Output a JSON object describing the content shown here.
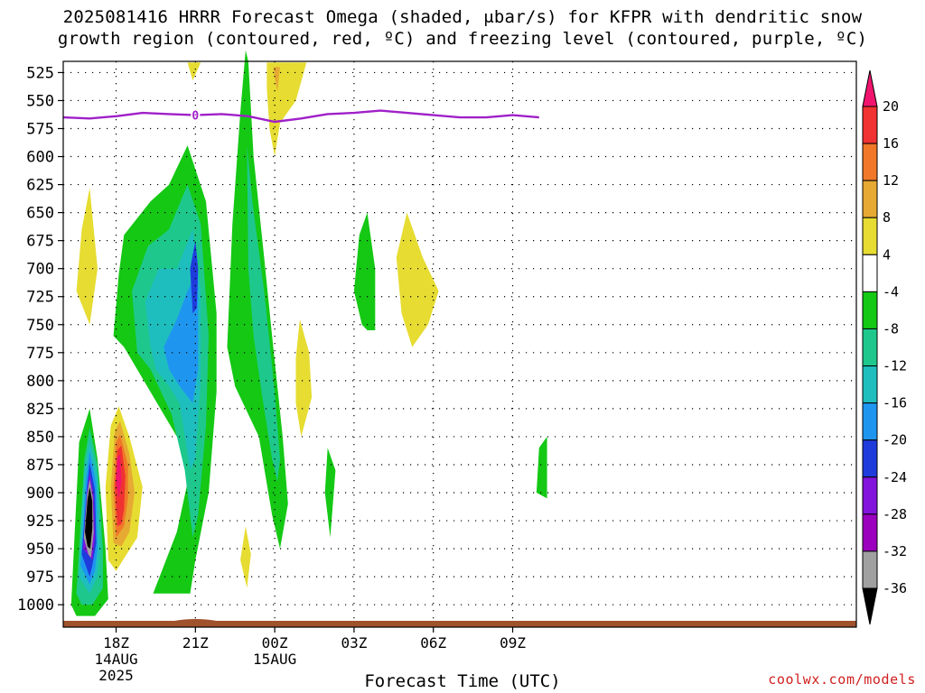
{
  "title_line1": "2025081416 HRRR Forecast Omega (shaded, μbar/s) for KFPR with dendritic snow",
  "title_line2": "growth region (contoured, red, ºC) and freezing level (contoured, purple, ºC)",
  "credit": "coolwx.com/models",
  "chart_data": {
    "type": "heatmap",
    "title": "2025081416 HRRR Forecast Omega (shaded, μbar/s) for KFPR with dendritic snow growth region (contoured, red, ºC) and freezing level (contoured, purple, ºC)",
    "xlabel": "Forecast Time (UTC)",
    "ylabel": "",
    "x_range_hours_utc": [
      16,
      46
    ],
    "y_range_hpa": [
      1020,
      515
    ],
    "y_ticks": [
      525,
      550,
      575,
      600,
      625,
      650,
      675,
      700,
      725,
      750,
      775,
      800,
      825,
      850,
      875,
      900,
      925,
      950,
      975,
      1000
    ],
    "x_ticks": [
      {
        "hour": 18,
        "label": "18Z",
        "sub1": "14AUG",
        "sub2": "2025"
      },
      {
        "hour": 21,
        "label": "21Z",
        "sub1": "",
        "sub2": ""
      },
      {
        "hour": 24,
        "label": "00Z",
        "sub1": "15AUG",
        "sub2": ""
      },
      {
        "hour": 27,
        "label": "03Z",
        "sub1": "",
        "sub2": ""
      },
      {
        "hour": 30,
        "label": "06Z",
        "sub1": "",
        "sub2": ""
      },
      {
        "hour": 33,
        "label": "09Z",
        "sub1": "",
        "sub2": ""
      }
    ],
    "grid": true,
    "colorbar": {
      "labels": [
        "20",
        "16",
        "12",
        "8",
        "4",
        "-4",
        "-8",
        "-12",
        "-16",
        "-20",
        "-24",
        "-28",
        "-32",
        "-36"
      ],
      "colors": [
        "#f0146e",
        "#f03232",
        "#f07828",
        "#e6aa32",
        "#e6dc32",
        "#ffffff",
        "#14c814",
        "#1ec88c",
        "#1ebebe",
        "#1e96f0",
        "#1e3cdc",
        "#8214dc",
        "#9b00be",
        "#a0a0a0",
        "#000000"
      ]
    },
    "freezing_level": {
      "label": "0",
      "color": "#a020c8",
      "points": [
        [
          16,
          565
        ],
        [
          17,
          566
        ],
        [
          18,
          564
        ],
        [
          19,
          561
        ],
        [
          20,
          562
        ],
        [
          21,
          563
        ],
        [
          22,
          562
        ],
        [
          23,
          564
        ],
        [
          24,
          569
        ],
        [
          25,
          566
        ],
        [
          26,
          562
        ],
        [
          27,
          561
        ],
        [
          28,
          559
        ],
        [
          29,
          561
        ],
        [
          30,
          563
        ],
        [
          31,
          565
        ],
        [
          32,
          565
        ],
        [
          33,
          563
        ],
        [
          34,
          565
        ]
      ]
    },
    "terrain_color": "#a0522d",
    "features": [
      {
        "level": -4,
        "points": [
          [
            16.3,
            1000
          ],
          [
            16.6,
            855
          ],
          [
            17.0,
            825
          ],
          [
            17.3,
            870
          ],
          [
            17.6,
            950
          ],
          [
            17.7,
            995
          ],
          [
            17.2,
            1010
          ],
          [
            16.5,
            1010
          ]
        ]
      },
      {
        "level": -8,
        "points": [
          [
            16.5,
            990
          ],
          [
            16.8,
            870
          ],
          [
            17.0,
            842
          ],
          [
            17.3,
            875
          ],
          [
            17.5,
            950
          ],
          [
            17.5,
            985
          ],
          [
            17.1,
            1000
          ],
          [
            16.7,
            1000
          ]
        ]
      },
      {
        "level": -12,
        "points": [
          [
            16.6,
            975
          ],
          [
            16.8,
            880
          ],
          [
            17.0,
            853
          ],
          [
            17.3,
            885
          ],
          [
            17.4,
            950
          ],
          [
            17.3,
            975
          ],
          [
            17.0,
            990
          ]
        ]
      },
      {
        "level": -16,
        "points": [
          [
            16.65,
            965
          ],
          [
            16.85,
            890
          ],
          [
            17.0,
            863
          ],
          [
            17.25,
            892
          ],
          [
            17.3,
            950
          ],
          [
            17.2,
            970
          ],
          [
            17.0,
            982
          ]
        ]
      },
      {
        "level": -20,
        "points": [
          [
            16.7,
            955
          ],
          [
            16.9,
            895
          ],
          [
            17.0,
            873
          ],
          [
            17.2,
            898
          ],
          [
            17.25,
            945
          ],
          [
            17.1,
            965
          ],
          [
            17.0,
            975
          ]
        ]
      },
      {
        "level": -24,
        "points": [
          [
            16.75,
            950
          ],
          [
            16.9,
            900
          ],
          [
            17.0,
            882
          ],
          [
            17.15,
            902
          ],
          [
            17.2,
            940
          ],
          [
            17.1,
            960
          ]
        ]
      },
      {
        "level": -32,
        "points": [
          [
            16.78,
            940
          ],
          [
            16.9,
            903
          ],
          [
            17.0,
            888
          ],
          [
            17.12,
            905
          ],
          [
            17.15,
            935
          ],
          [
            17.05,
            958
          ],
          [
            16.95,
            955
          ]
        ]
      },
      {
        "level": -36,
        "points": [
          [
            16.82,
            935
          ],
          [
            16.92,
            906
          ],
          [
            17.0,
            895
          ],
          [
            17.1,
            908
          ],
          [
            17.1,
            932
          ],
          [
            17.02,
            950
          ],
          [
            16.92,
            948
          ]
        ]
      },
      {
        "level": 4,
        "points": [
          [
            17.6,
            895
          ],
          [
            17.8,
            840
          ],
          [
            18.1,
            823
          ],
          [
            18.5,
            850
          ],
          [
            19.0,
            895
          ],
          [
            18.8,
            940
          ],
          [
            18.4,
            955
          ],
          [
            18.0,
            970
          ],
          [
            17.7,
            960
          ]
        ]
      },
      {
        "level": 8,
        "points": [
          [
            17.8,
            895
          ],
          [
            17.95,
            845
          ],
          [
            18.15,
            836
          ],
          [
            18.5,
            865
          ],
          [
            18.7,
            900
          ],
          [
            18.5,
            935
          ],
          [
            18.2,
            948
          ],
          [
            17.9,
            945
          ]
        ]
      },
      {
        "level": 12,
        "points": [
          [
            17.9,
            895
          ],
          [
            18.0,
            855
          ],
          [
            18.15,
            848
          ],
          [
            18.45,
            875
          ],
          [
            18.45,
            905
          ],
          [
            18.3,
            930
          ],
          [
            18.0,
            940
          ]
        ]
      },
      {
        "level": 16,
        "points": [
          [
            17.95,
            895
          ],
          [
            18.05,
            862
          ],
          [
            18.2,
            858
          ],
          [
            18.35,
            885
          ],
          [
            18.3,
            915
          ],
          [
            18.2,
            928
          ],
          [
            18.05,
            930
          ]
        ]
      },
      {
        "level": 20,
        "points": [
          [
            18.0,
            890
          ],
          [
            18.05,
            868
          ],
          [
            18.15,
            866
          ],
          [
            18.2,
            890
          ],
          [
            18.1,
            905
          ]
        ]
      },
      {
        "level": 4,
        "points": [
          [
            16.5,
            720
          ],
          [
            16.7,
            665
          ],
          [
            17.0,
            628
          ],
          [
            17.3,
            700
          ],
          [
            17.0,
            750
          ]
        ]
      },
      {
        "level": 4,
        "points": [
          [
            20.7,
            516
          ],
          [
            21.2,
            516
          ],
          [
            20.9,
            532
          ]
        ]
      },
      {
        "level": 4,
        "points": [
          [
            23.7,
            516
          ],
          [
            25.2,
            516
          ],
          [
            24.8,
            550
          ],
          [
            24.2,
            570
          ],
          [
            24.0,
            600
          ],
          [
            23.8,
            575
          ],
          [
            23.7,
            540
          ]
        ]
      },
      {
        "level": 8,
        "points": [
          [
            23.95,
            520
          ],
          [
            24.2,
            520
          ],
          [
            24.1,
            542
          ],
          [
            24.0,
            530
          ]
        ]
      },
      {
        "level": 4,
        "points": [
          [
            24.8,
            780
          ],
          [
            24.95,
            745
          ],
          [
            25.3,
            775
          ],
          [
            25.4,
            815
          ],
          [
            25.0,
            850
          ],
          [
            24.8,
            820
          ]
        ]
      },
      {
        "level": 4,
        "points": [
          [
            22.7,
            960
          ],
          [
            22.9,
            930
          ],
          [
            23.1,
            955
          ],
          [
            22.95,
            985
          ]
        ]
      },
      {
        "level": 4,
        "points": [
          [
            28.6,
            690
          ],
          [
            29.0,
            650
          ],
          [
            29.6,
            690
          ],
          [
            30.2,
            720
          ],
          [
            29.8,
            750
          ],
          [
            29.2,
            770
          ],
          [
            28.8,
            740
          ]
        ]
      },
      {
        "level": -4,
        "points": [
          [
            17.9,
            760
          ],
          [
            18.1,
            705
          ],
          [
            18.3,
            670
          ],
          [
            19.3,
            640
          ],
          [
            20.0,
            625
          ],
          [
            20.7,
            590
          ],
          [
            21.4,
            640
          ],
          [
            21.8,
            740
          ],
          [
            21.8,
            810
          ],
          [
            21.5,
            900
          ],
          [
            21.0,
            960
          ],
          [
            20.8,
            990
          ],
          [
            19.4,
            990
          ],
          [
            20.3,
            935
          ],
          [
            20.8,
            880
          ],
          [
            20.3,
            850
          ],
          [
            18.3,
            770
          ]
        ]
      },
      {
        "level": -8,
        "points": [
          [
            18.6,
            720
          ],
          [
            19.2,
            680
          ],
          [
            20.0,
            665
          ],
          [
            20.7,
            625
          ],
          [
            21.2,
            660
          ],
          [
            21.5,
            760
          ],
          [
            21.4,
            840
          ],
          [
            21.1,
            920
          ],
          [
            20.9,
            940
          ],
          [
            20.6,
            880
          ],
          [
            20.1,
            830
          ],
          [
            19.3,
            790
          ],
          [
            18.8,
            775
          ]
        ]
      },
      {
        "level": -12,
        "points": [
          [
            19.1,
            730
          ],
          [
            19.6,
            700
          ],
          [
            20.3,
            700
          ],
          [
            20.9,
            665
          ],
          [
            21.2,
            720
          ],
          [
            21.2,
            800
          ],
          [
            21.0,
            870
          ],
          [
            20.8,
            880
          ],
          [
            20.4,
            820
          ],
          [
            20.0,
            805
          ],
          [
            19.5,
            790
          ],
          [
            19.3,
            770
          ]
        ]
      },
      {
        "level": -16,
        "points": [
          [
            19.8,
            770
          ],
          [
            20.3,
            745
          ],
          [
            20.7,
            720
          ],
          [
            21.1,
            700
          ],
          [
            21.1,
            790
          ],
          [
            20.9,
            820
          ],
          [
            20.4,
            805
          ],
          [
            20.0,
            790
          ]
        ]
      },
      {
        "level": -20,
        "points": [
          [
            20.8,
            700
          ],
          [
            21.0,
            675
          ],
          [
            21.1,
            700
          ],
          [
            21.05,
            735
          ],
          [
            20.9,
            740
          ]
        ]
      },
      {
        "level": -4,
        "points": [
          [
            22.2,
            770
          ],
          [
            22.4,
            660
          ],
          [
            22.7,
            560
          ],
          [
            22.9,
            505
          ],
          [
            23.0,
            515
          ],
          [
            23.2,
            600
          ],
          [
            23.6,
            690
          ],
          [
            23.9,
            760
          ],
          [
            24.3,
            850
          ],
          [
            24.5,
            910
          ],
          [
            24.2,
            950
          ],
          [
            23.9,
            920
          ],
          [
            23.4,
            850
          ],
          [
            22.5,
            805
          ]
        ]
      },
      {
        "level": -8,
        "points": [
          [
            22.95,
            590
          ],
          [
            23.15,
            640
          ],
          [
            23.6,
            720
          ],
          [
            24.0,
            810
          ],
          [
            24.2,
            870
          ],
          [
            24.1,
            890
          ],
          [
            23.9,
            870
          ],
          [
            23.5,
            810
          ],
          [
            23.2,
            760
          ],
          [
            23.0,
            700
          ]
        ]
      },
      {
        "level": -4,
        "points": [
          [
            27.0,
            720
          ],
          [
            27.2,
            670
          ],
          [
            27.5,
            650
          ],
          [
            27.8,
            700
          ],
          [
            27.8,
            755
          ],
          [
            27.5,
            755
          ],
          [
            27.3,
            750
          ]
        ]
      },
      {
        "level": -4,
        "points": [
          [
            26.0,
            860
          ],
          [
            26.3,
            880
          ],
          [
            26.1,
            940
          ],
          [
            25.9,
            900
          ]
        ]
      },
      {
        "level": -4,
        "points": [
          [
            33.9,
            900
          ],
          [
            34.0,
            860
          ],
          [
            34.3,
            850
          ],
          [
            34.3,
            905
          ]
        ]
      }
    ]
  }
}
